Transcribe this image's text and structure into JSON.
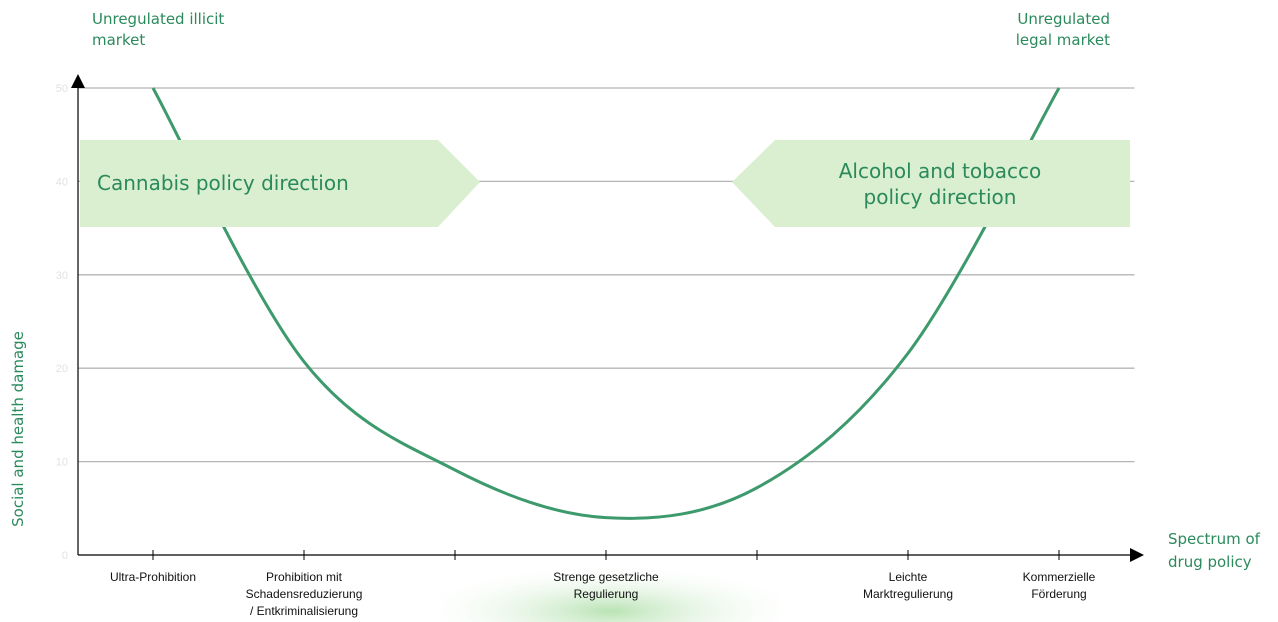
{
  "chart_data": {
    "type": "line",
    "categories": [
      "Ultra-Prohibition",
      "Prohibition mit\nSchadensreduzierung\n/ Entkriminalisierung",
      null,
      "Strenge gesetzliche\nRegulierung",
      null,
      "Leichte\nMarktregulierung",
      "Kommerzielle\nFörderung"
    ],
    "series": [
      {
        "color": "#3d9a6c",
        "values": [
          50,
          20.7,
          9.1,
          4,
          7.2,
          21.6,
          50
        ]
      }
    ],
    "smooth": true,
    "ylim": [
      0,
      50
    ],
    "yticks": [
      0,
      10,
      20,
      30,
      40,
      50
    ],
    "grid": true,
    "x_label": "Spectrum of\ndrug policy",
    "y_label": "Social and health damage",
    "annotations": {
      "left_top": "Unregulated illicit\nmarket",
      "right_top": "Unregulated\nlegal market",
      "left_arrow": "Cannabis policy direction",
      "right_arrow": "Alcohol and tobacco\npolicy direction"
    }
  }
}
